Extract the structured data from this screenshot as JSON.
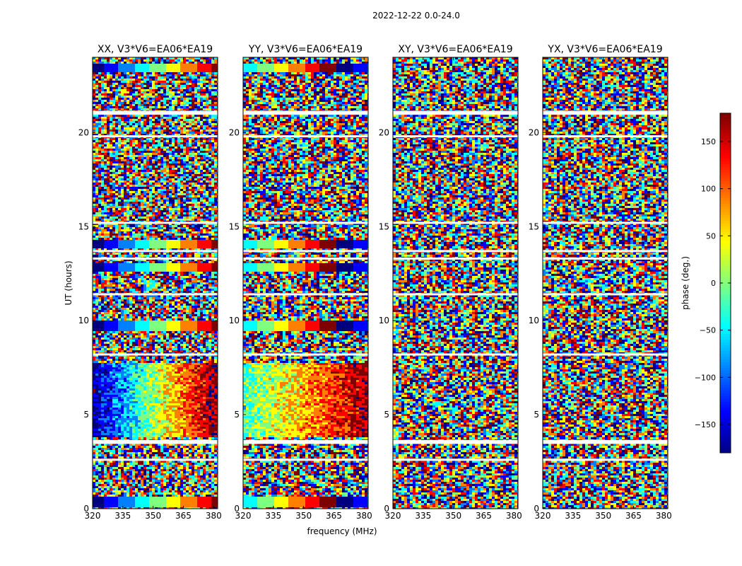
{
  "figure_title": "2022-12-22 0.0-24.0",
  "colormap": [
    "#00007f",
    "#0000ff",
    "#007fff",
    "#00ffff",
    "#7fff7f",
    "#ffff00",
    "#ff7f00",
    "#ff0000",
    "#7f0000"
  ],
  "chart_data": [
    {
      "type": "heatmap",
      "title": "XX, V3*V6=EA06*EA19",
      "xlabel": "",
      "ylabel": "UT (hours)",
      "xlim": [
        320,
        382
      ],
      "ylim": [
        0,
        24
      ],
      "xticks": [
        320,
        335,
        350,
        365,
        380
      ],
      "yticks": [
        0,
        5,
        10,
        15,
        20
      ],
      "value_label": "phase (deg.)",
      "value_range": [
        -180,
        180
      ],
      "description_of_pattern": "phase wraps along frequency; coherent gradient near 4-8 h and ~9.8, ~13, ~14, ~23.5 h",
      "structured_rows_hours": [
        0.4,
        9.8,
        12.9,
        14.1,
        23.5
      ],
      "gradient_block_hours": [
        3.8,
        7.8
      ],
      "flagged_gaps_hours": [
        2.6,
        3.5,
        3.6,
        8.2,
        11.4,
        13.3,
        13.7,
        15.2,
        19.8,
        21.0,
        21.1
      ]
    },
    {
      "type": "heatmap",
      "title": "YY, V3*V6=EA06*EA19",
      "xlabel": "frequency (MHz)",
      "ylabel": "",
      "xlim": [
        320,
        382
      ],
      "ylim": [
        0,
        24
      ],
      "xticks": [
        320,
        335,
        350,
        365,
        380
      ],
      "yticks": [
        0,
        5,
        10,
        15,
        20
      ],
      "value_label": "phase (deg.)",
      "value_range": [
        -180,
        180
      ],
      "structured_rows_hours": [
        0.4,
        9.8,
        12.9,
        14.1,
        23.5
      ],
      "gradient_block_hours": [
        3.8,
        7.8
      ],
      "flagged_gaps_hours": [
        2.6,
        3.5,
        3.6,
        8.2,
        11.4,
        13.3,
        13.7,
        15.2,
        19.8,
        21.0,
        21.1
      ]
    },
    {
      "type": "heatmap",
      "title": "XY, V3*V6=EA06*EA19",
      "xlabel": "",
      "ylabel": "",
      "xlim": [
        320,
        382
      ],
      "ylim": [
        0,
        24
      ],
      "xticks": [
        320,
        335,
        350,
        365,
        380
      ],
      "yticks": [
        0,
        5,
        10,
        15,
        20
      ],
      "value_label": "phase (deg.)",
      "value_range": [
        -180,
        180
      ],
      "structured_rows_hours": [],
      "gradient_block_hours": [],
      "flagged_gaps_hours": [
        2.6,
        3.5,
        3.6,
        8.2,
        11.4,
        13.3,
        13.7,
        15.2,
        19.8,
        21.0,
        21.1
      ]
    },
    {
      "type": "heatmap",
      "title": "YX, V3*V6=EA06*EA19",
      "xlabel": "",
      "ylabel": "",
      "xlim": [
        320,
        382
      ],
      "ylim": [
        0,
        24
      ],
      "xticks": [
        320,
        335,
        350,
        365,
        380
      ],
      "yticks": [
        0,
        5,
        10,
        15,
        20
      ],
      "value_label": "phase (deg.)",
      "value_range": [
        -180,
        180
      ],
      "structured_rows_hours": [],
      "gradient_block_hours": [],
      "flagged_gaps_hours": [
        2.6,
        3.5,
        3.6,
        8.2,
        11.4,
        13.3,
        13.7,
        15.2,
        19.8,
        21.0,
        21.1
      ]
    }
  ],
  "colorbar": {
    "label": "phase (deg.)",
    "range": [
      -180,
      180
    ],
    "ticks": [
      150,
      100,
      50,
      0,
      -50,
      -100,
      -150
    ],
    "tick_labels": [
      "150",
      "100",
      "50",
      "0",
      "−50",
      "−100",
      "−150"
    ]
  }
}
